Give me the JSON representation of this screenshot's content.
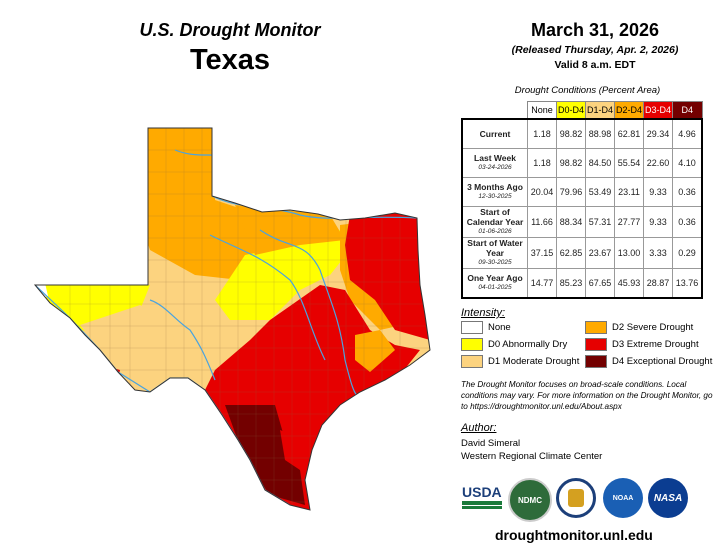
{
  "header": {
    "title": "U.S. Drought Monitor",
    "state": "Texas",
    "date": "March 31, 2026",
    "released": "(Released Thursday, Apr. 2, 2026)",
    "valid": "Valid 8 a.m. EDT"
  },
  "table": {
    "caption": "Drought Conditions (Percent Area)",
    "columns": [
      "None",
      "D0-D4",
      "D1-D4",
      "D2-D4",
      "D3-D4",
      "D4"
    ],
    "column_colors": [
      "#ffffff",
      "#ffff00",
      "#fcd37f",
      "#ffaa00",
      "#e60000",
      "#730000"
    ],
    "rows": [
      {
        "label": "Current",
        "sub": "",
        "values": [
          "1.18",
          "98.82",
          "88.98",
          "62.81",
          "29.34",
          "4.96"
        ]
      },
      {
        "label": "Last Week",
        "sub": "03-24-2026",
        "values": [
          "1.18",
          "98.82",
          "84.50",
          "55.54",
          "22.60",
          "4.10"
        ]
      },
      {
        "label": "3 Months Ago",
        "sub": "12-30-2025",
        "values": [
          "20.04",
          "79.96",
          "53.49",
          "23.11",
          "9.33",
          "0.36"
        ]
      },
      {
        "label": "Start of Calendar Year",
        "sub": "01-06-2026",
        "values": [
          "11.66",
          "88.34",
          "57.31",
          "27.77",
          "9.33",
          "0.36"
        ]
      },
      {
        "label": "Start of Water Year",
        "sub": "09-30-2025",
        "values": [
          "37.15",
          "62.85",
          "23.67",
          "13.00",
          "3.33",
          "0.29"
        ]
      },
      {
        "label": "One Year Ago",
        "sub": "04-01-2025",
        "values": [
          "14.77",
          "85.23",
          "67.65",
          "45.93",
          "28.87",
          "13.76"
        ]
      }
    ]
  },
  "legend": {
    "title": "Intensity:",
    "items": [
      {
        "label": "None",
        "color": "#ffffff"
      },
      {
        "label": "D0 Abnormally Dry",
        "color": "#ffff00"
      },
      {
        "label": "D1 Moderate Drought",
        "color": "#fcd37f"
      },
      {
        "label": "D2 Severe Drought",
        "color": "#ffaa00"
      },
      {
        "label": "D3 Extreme Drought",
        "color": "#e60000"
      },
      {
        "label": "D4 Exceptional Drought",
        "color": "#730000"
      }
    ]
  },
  "note": "The Drought Monitor focuses on broad-scale conditions. Local conditions may vary. For more information on the Drought Monitor, go to https://droughtmonitor.unl.edu/About.aspx",
  "author": {
    "title": "Author:",
    "name": "David Simeral",
    "org": "Western Regional Climate Center"
  },
  "logos": {
    "usda": "USDA",
    "ndmc": "NDMC",
    "noaa": "NOAA",
    "nasa": "NASA"
  },
  "url": "droughtmonitor.unl.edu"
}
